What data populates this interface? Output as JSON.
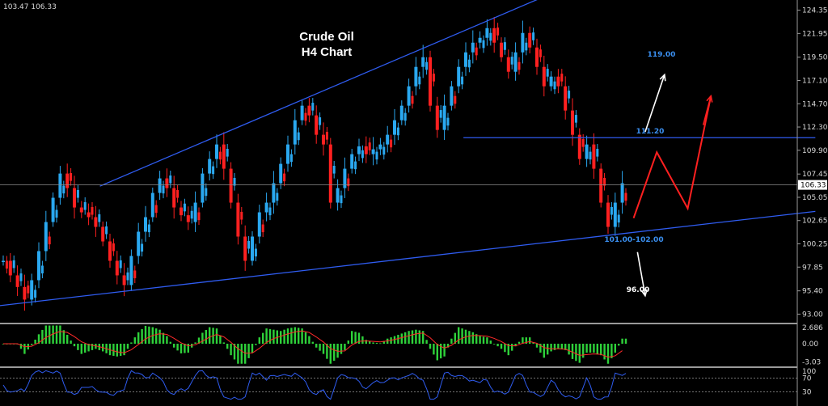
{
  "header": {
    "ohlc_text": "103.47 106.33"
  },
  "chart_data": {
    "type": "candlestick",
    "title_line1": "Crude Oil",
    "title_line2": "H4 Chart",
    "ylim": [
      92.2,
      125.4
    ],
    "y_ticks": [
      "124.35",
      "121.95",
      "119.50",
      "117.10",
      "114.70",
      "112.30",
      "109.90",
      "107.45",
      "105.05",
      "102.65",
      "100.25",
      "97.85",
      "95.40",
      "93.00"
    ],
    "current_price": "106.33",
    "levels": [
      {
        "label": "119.00",
        "style": "blue"
      },
      {
        "label": "111.20",
        "style": "blue"
      },
      {
        "label": "101.00-102.00",
        "style": "blue"
      },
      {
        "label": "96.00",
        "style": "white"
      }
    ],
    "horizontal_level": 111.2,
    "trendlines": [
      {
        "name": "upper-channel",
        "points": [
          [
            50,
            106.2
          ],
          [
            285,
            126.2
          ]
        ]
      },
      {
        "name": "lower-support",
        "points": [
          [
            -5,
            93.8
          ],
          [
            420,
            103.6
          ]
        ]
      },
      {
        "name": "horizontal-resistance",
        "points": [
          [
            238,
            111.2
          ],
          [
            420,
            111.2
          ]
        ]
      }
    ],
    "projection_path": [
      [
        326,
        102.9
      ],
      [
        338,
        109.7
      ],
      [
        354,
        103.9
      ],
      [
        366,
        115.5
      ]
    ],
    "arrows": [
      {
        "color": "#ffffff",
        "from": [
          332,
          111.8
        ],
        "to": [
          342,
          117.7
        ]
      },
      {
        "color": "#ff2020",
        "from": [
          362,
          112.5
        ],
        "to": [
          366,
          115.5
        ]
      },
      {
        "color": "#ffffff",
        "from": [
          328,
          99.4
        ],
        "to": [
          332,
          94.9
        ]
      }
    ],
    "closes": [
      98.5,
      97.0,
      95.8,
      94.5,
      96.5,
      99.5,
      102.5,
      105.0,
      107.5,
      106.0,
      104.0,
      103.5,
      103.0,
      102.0,
      100.5,
      98.5,
      97.0,
      96.0,
      99.0,
      101.5,
      103.0,
      105.5,
      107.0,
      106.0,
      104.0,
      103.2,
      102.5,
      104.5,
      107.5,
      109.0,
      110.5,
      108.0,
      104.5,
      101.0,
      98.5,
      101.0,
      103.5,
      104.5,
      106.5,
      108.5,
      110.5,
      113.0,
      114.5,
      113.5,
      111.5,
      110.5,
      104.5,
      106.0,
      108.0,
      109.5,
      110.3,
      109.5,
      110.0,
      110.5,
      111.5,
      113.0,
      114.5,
      116.5,
      118.5,
      119.5,
      114.5,
      112.0,
      114.5,
      116.5,
      118.5,
      120.0,
      121.0,
      121.5,
      122.5,
      121.0,
      119.5,
      118.0,
      120.0,
      122.0,
      120.5,
      118.5,
      116.5,
      117.5,
      116.5,
      114.0,
      111.5,
      109.0,
      110.5,
      108.0,
      104.5,
      102.0,
      104.5,
      106.5
    ],
    "macd": {
      "ylim": [
        -3.6,
        3.2
      ],
      "ticks": [
        "2.686",
        "0.00",
        "-3.03"
      ]
    },
    "rsi": {
      "ylim": [
        0,
        100
      ],
      "ticks": [
        "100",
        "70",
        "30"
      ]
    },
    "colors": {
      "bull": "#2aa8f0",
      "bear": "#ff2020",
      "trendline": "#2f5cf0",
      "macd_hist": "#2ed13a",
      "signal": "#ff2a2a",
      "rsi": "#2f5cf0"
    }
  }
}
